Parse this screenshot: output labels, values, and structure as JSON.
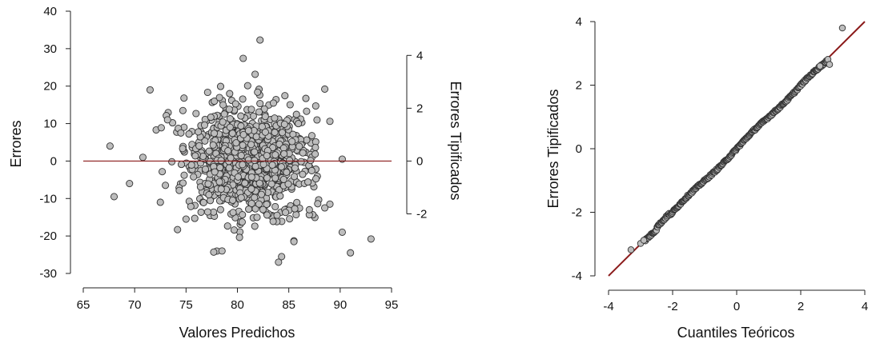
{
  "colors": {
    "point_fill": "#bdbdbd",
    "point_stroke": "#333333",
    "reference_line": "#8b1a1a"
  },
  "chart_data": [
    {
      "type": "scatter",
      "title": "",
      "xlabel": "Valores Predichos",
      "ylabel": "Errores",
      "y2label": "Errores Tipificados",
      "xlim": [
        65,
        95
      ],
      "ylim": [
        -30,
        40
      ],
      "y2lim": [
        -2,
        4
      ],
      "x_ticks": [
        65,
        70,
        75,
        80,
        85,
        90,
        95
      ],
      "y_ticks": [
        -30,
        -20,
        -10,
        0,
        10,
        20,
        30,
        40
      ],
      "y2_ticks": [
        -2,
        0,
        2,
        4
      ],
      "reference_line": {
        "type": "horizontal",
        "y": 0,
        "x_range": [
          65,
          95
        ]
      },
      "grid": false,
      "legend": "none",
      "points_note": "approx. 1000 residual points centred near x=81, y=0 (sd ~8)",
      "outliers": [
        {
          "x": 67.6,
          "y": 4
        },
        {
          "x": 68,
          "y": -9.5
        },
        {
          "x": 69.5,
          "y": -6
        },
        {
          "x": 70.8,
          "y": 1
        },
        {
          "x": 71.5,
          "y": 19
        },
        {
          "x": 72.5,
          "y": -11
        },
        {
          "x": 74.8,
          "y": 16.8
        },
        {
          "x": 75,
          "y": -15.5
        },
        {
          "x": 82.2,
          "y": 32.3
        },
        {
          "x": 84,
          "y": -27
        },
        {
          "x": 84.3,
          "y": -25.5
        },
        {
          "x": 78.5,
          "y": -24
        },
        {
          "x": 85.5,
          "y": -21.5
        },
        {
          "x": 88.5,
          "y": 19.2
        },
        {
          "x": 88.5,
          "y": -12.5
        },
        {
          "x": 89,
          "y": 10.6
        },
        {
          "x": 90.2,
          "y": 0.5
        },
        {
          "x": 90.2,
          "y": -19
        },
        {
          "x": 91,
          "y": -24.5
        },
        {
          "x": 93,
          "y": -20.8
        },
        {
          "x": 89,
          "y": -11.5
        },
        {
          "x": 87,
          "y": -13
        },
        {
          "x": 73.2,
          "y": 11
        },
        {
          "x": 74.5,
          "y": 7.5
        }
      ]
    },
    {
      "type": "scatter",
      "title": "",
      "xlabel": "Cuantiles Teóricos",
      "ylabel": "Errores Tipificados",
      "xlim": [
        -4,
        4
      ],
      "ylim": [
        -4,
        4
      ],
      "x_ticks": [
        -4,
        -2,
        0,
        2,
        4
      ],
      "y_ticks": [
        -4,
        -2,
        0,
        2,
        4
      ],
      "reference_line": {
        "type": "identity",
        "from": [
          -4,
          -4
        ],
        "to": [
          4,
          4
        ]
      },
      "grid": false,
      "legend": "none",
      "points_note": "Q-Q points closely following the identity line from about -3.3 to 3.3",
      "extreme_points": [
        {
          "x": -3.3,
          "y": -3.18
        },
        {
          "x": -3.0,
          "y": -2.98
        },
        {
          "x": -2.9,
          "y": -2.88
        },
        {
          "x": 2.6,
          "y": 2.6
        },
        {
          "x": 2.9,
          "y": 2.65
        },
        {
          "x": 3.3,
          "y": 3.8
        }
      ]
    }
  ]
}
